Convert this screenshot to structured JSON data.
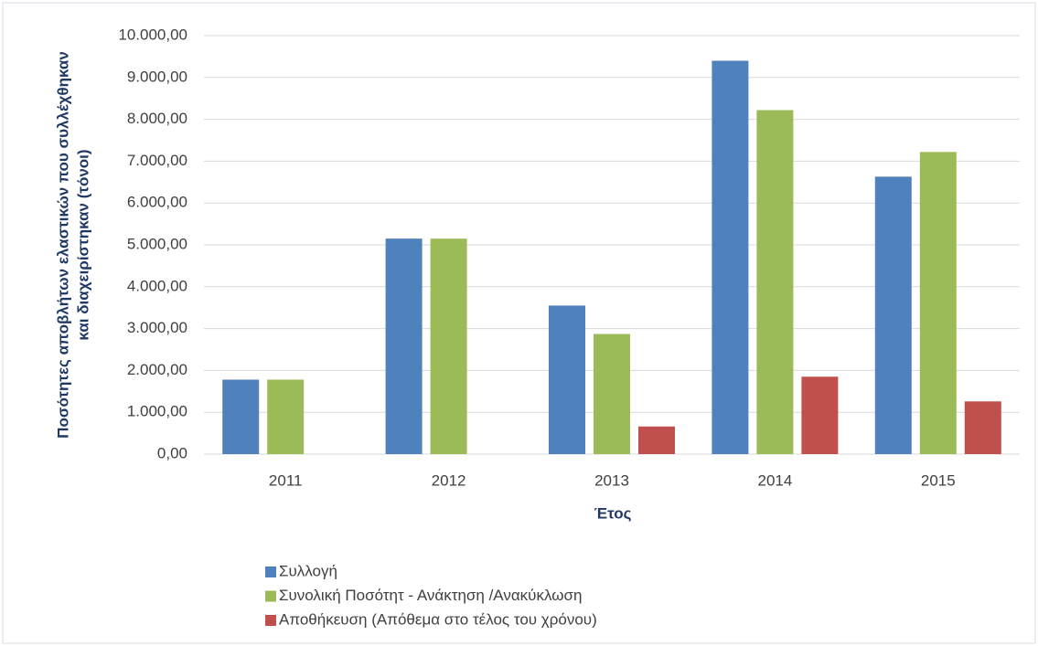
{
  "chart_data": {
    "type": "bar",
    "ylabel": [
      "Ποσότητες αποβλήτων ελαστικών που συλλέχθηκαν",
      "και διαχειρίστηκαν (τόνοι)"
    ],
    "xlabel": "Έτος",
    "categories": [
      "2011",
      "2012",
      "2013",
      "2014",
      "2015"
    ],
    "series": [
      {
        "name": "Συλλογή",
        "color": "#4f81bd",
        "values": [
          1780,
          5150,
          3550,
          9400,
          6630
        ]
      },
      {
        "name": "Συνολική Ποσότητ - Ανάκτηση /Ανακύκλωση",
        "color": "#9bbb59",
        "values": [
          1780,
          5150,
          2870,
          8220,
          7220
        ]
      },
      {
        "name": "Αποθήκευση (Απόθεμα στο τέλος του χρόνου)",
        "color": "#c0504d",
        "values": [
          null,
          null,
          660,
          1850,
          1260
        ]
      }
    ],
    "ylim": [
      0,
      10000
    ],
    "yticks": [
      {
        "value": 0,
        "label": "0,00"
      },
      {
        "value": 1000,
        "label": "1.000,00"
      },
      {
        "value": 2000,
        "label": "2.000,00"
      },
      {
        "value": 3000,
        "label": "3.000,00"
      },
      {
        "value": 4000,
        "label": "4.000,00"
      },
      {
        "value": 5000,
        "label": "5.000,00"
      },
      {
        "value": 6000,
        "label": "6.000,00"
      },
      {
        "value": 7000,
        "label": "7.000,00"
      },
      {
        "value": 8000,
        "label": "8.000,00"
      },
      {
        "value": 9000,
        "label": "9.000,00"
      },
      {
        "value": 10000,
        "label": "10.000,00"
      }
    ],
    "grid": true,
    "legend": "bottom-left"
  }
}
